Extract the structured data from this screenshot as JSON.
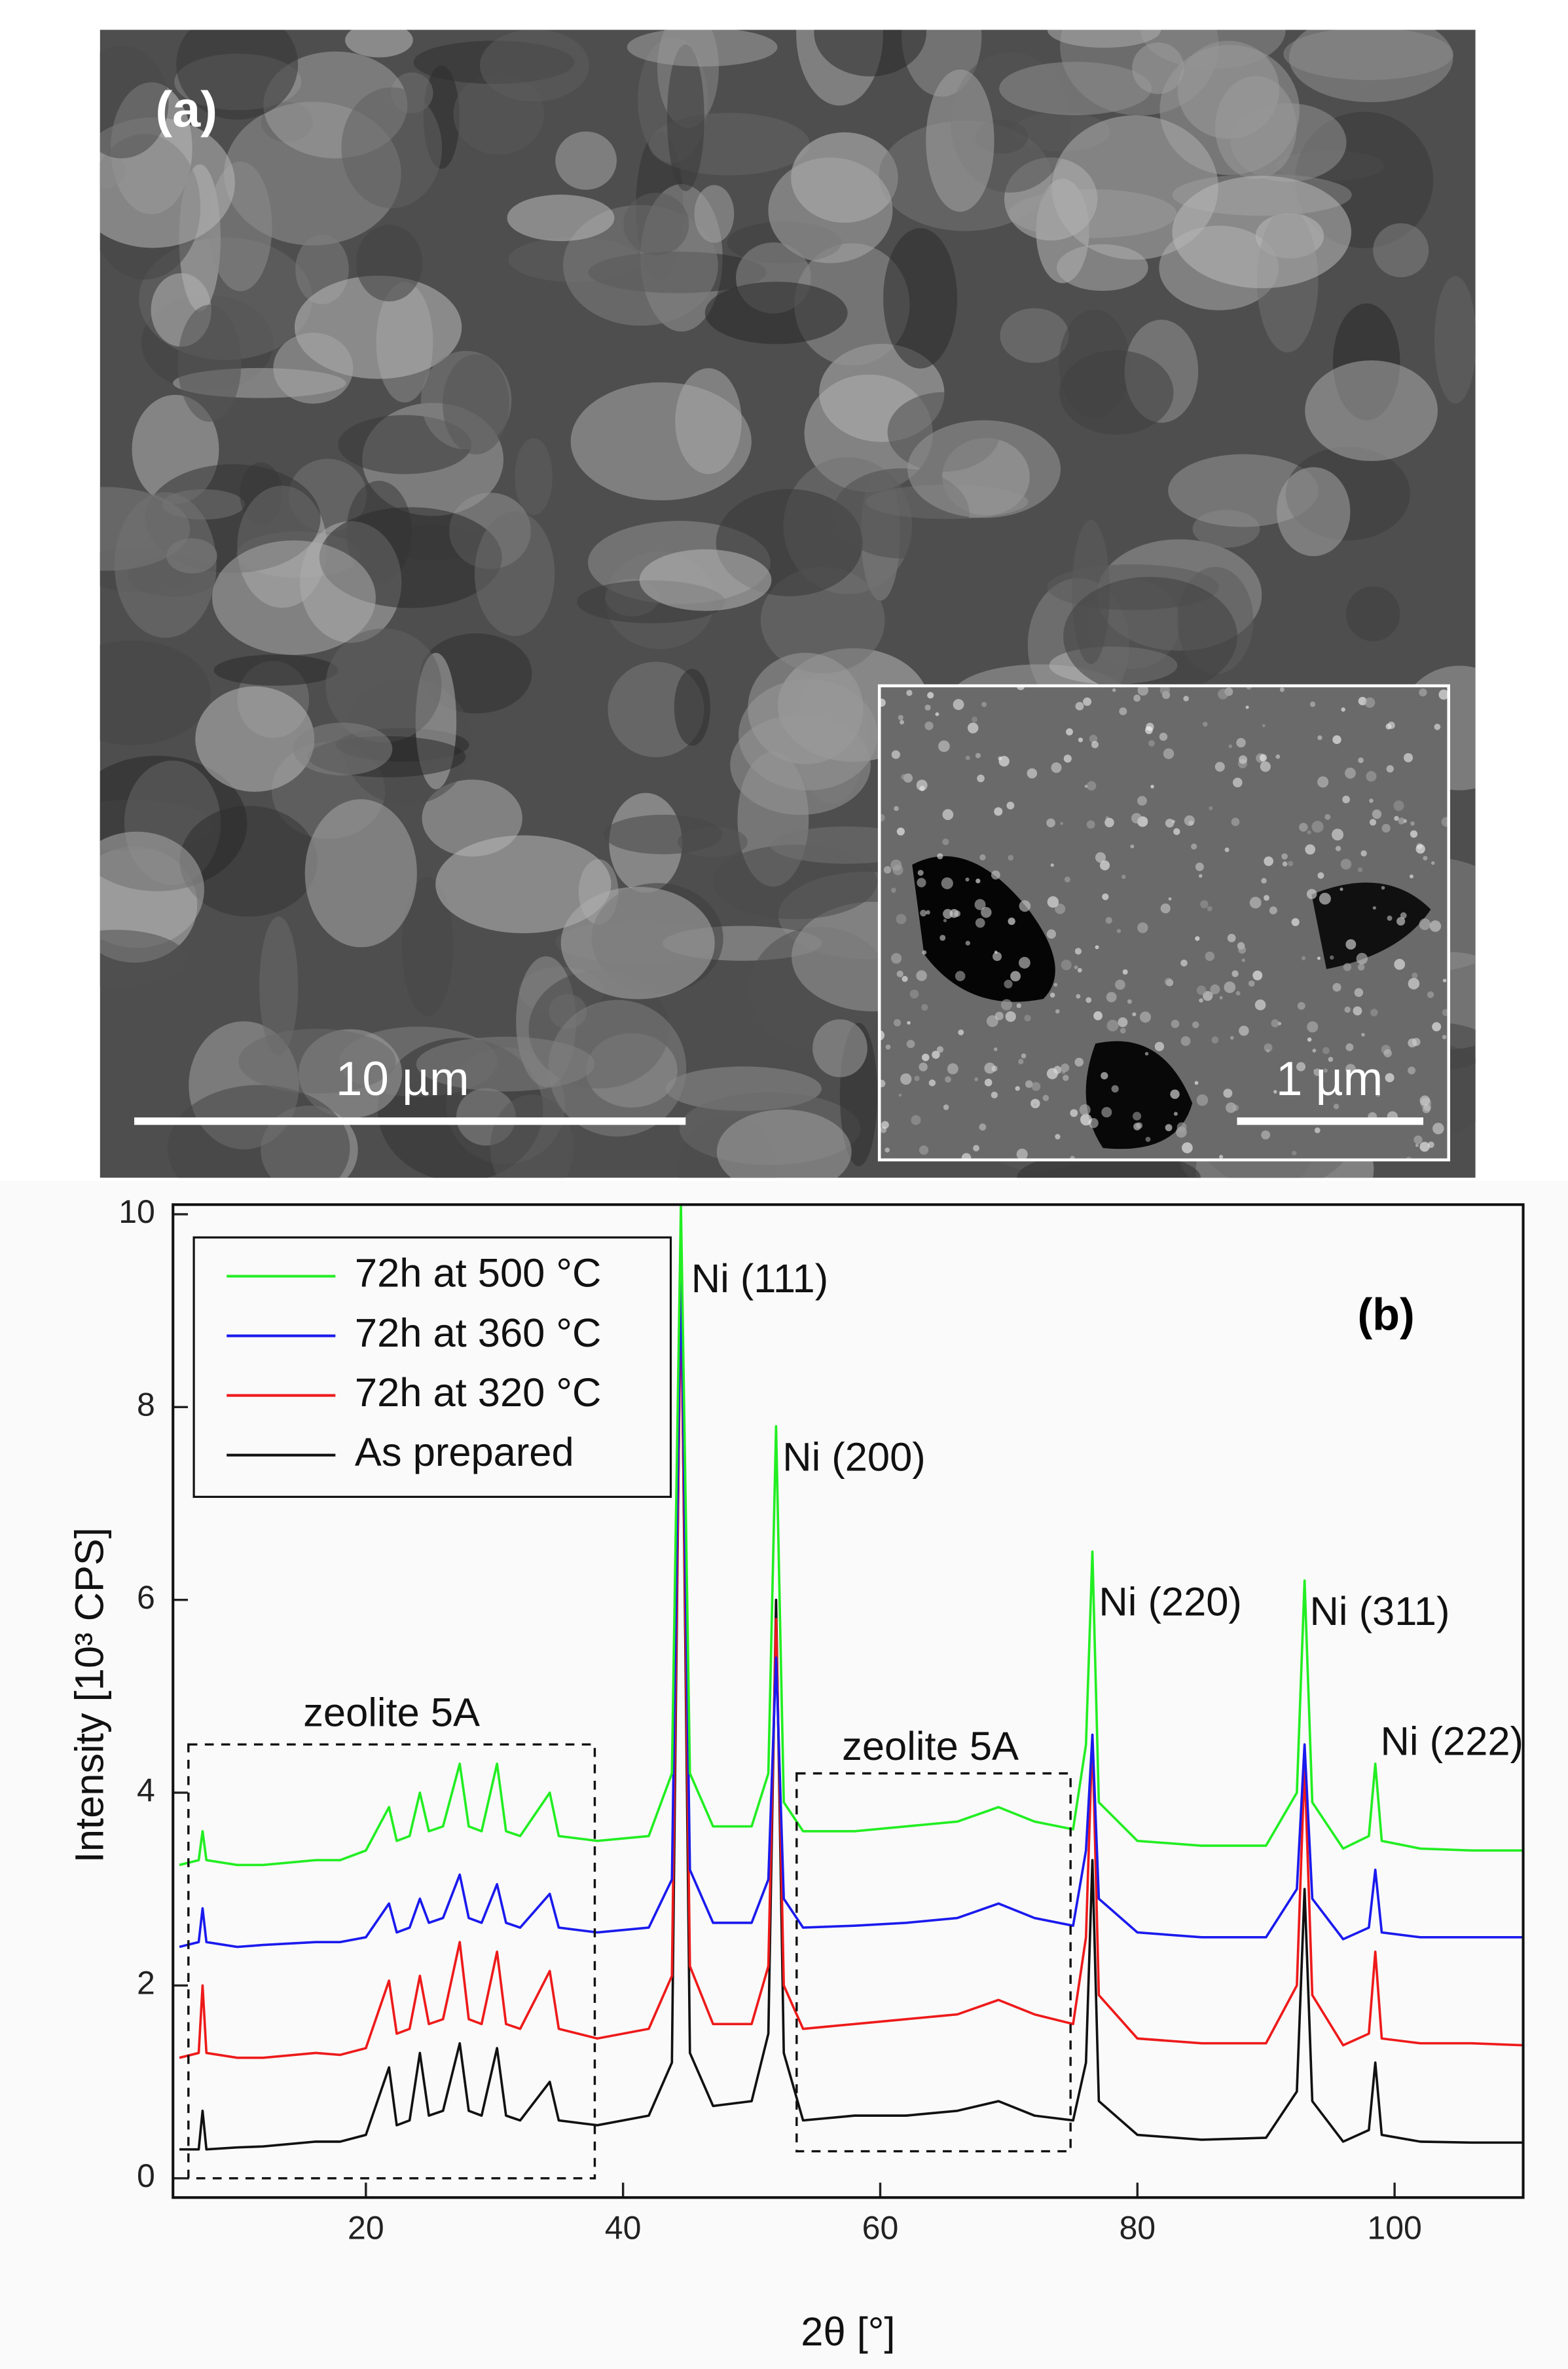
{
  "panel_a": {
    "label": "(a)",
    "scale_bar": "10 µm",
    "inset_scale_bar": "1 µm"
  },
  "chart_data": {
    "type": "line",
    "panel_label": "(b)",
    "x_label": "2θ [°]",
    "y_label": "Intensity [10³ CPS]",
    "xlim": [
      5,
      110
    ],
    "ylim": [
      -0.2,
      10.1
    ],
    "xticks": [
      20,
      40,
      60,
      80,
      100
    ],
    "yticks": [
      0,
      2,
      4,
      6,
      8,
      10
    ],
    "legend": "top-left",
    "annotations": [
      "Ni (111)",
      "Ni (200)",
      "Ni (220)",
      "Ni (311)",
      "Ni (222)",
      "zeolite 5A",
      "zeolite 5A"
    ],
    "x": [
      5.5,
      7,
      7.3,
      7.6,
      10,
      12,
      16.1,
      18,
      20,
      21.8,
      22.4,
      23.4,
      24.2,
      24.9,
      26,
      27.3,
      28,
      29,
      30.2,
      30.9,
      32,
      34.3,
      35,
      38,
      42,
      43.8,
      44.5,
      45.2,
      47,
      50,
      51.3,
      51.9,
      52.5,
      54,
      58,
      62,
      66,
      69.2,
      72,
      75,
      76,
      76.5,
      77,
      80,
      85,
      90,
      92.4,
      93,
      93.6,
      96,
      98,
      98.5,
      99,
      102,
      106,
      110
    ],
    "series": [
      {
        "name": "72h at 500 °C",
        "color": "#22ee22",
        "values": [
          3.25,
          3.3,
          3.6,
          3.3,
          3.25,
          3.25,
          3.3,
          3.3,
          3.4,
          3.85,
          3.5,
          3.55,
          4.0,
          3.6,
          3.65,
          4.3,
          3.65,
          3.6,
          4.3,
          3.6,
          3.55,
          4.0,
          3.55,
          3.5,
          3.55,
          4.2,
          10.1,
          4.2,
          3.65,
          3.65,
          4.2,
          7.8,
          3.9,
          3.6,
          3.6,
          3.65,
          3.7,
          3.85,
          3.7,
          3.62,
          4.5,
          6.5,
          3.9,
          3.5,
          3.45,
          3.45,
          4.0,
          6.2,
          3.9,
          3.42,
          3.55,
          4.3,
          3.5,
          3.42,
          3.4,
          3.4
        ]
      },
      {
        "name": "72h at 360 °C",
        "color": "#1a1aee",
        "values": [
          2.4,
          2.45,
          2.8,
          2.45,
          2.4,
          2.42,
          2.45,
          2.45,
          2.5,
          2.85,
          2.55,
          2.6,
          2.9,
          2.65,
          2.7,
          3.15,
          2.7,
          2.65,
          3.05,
          2.65,
          2.6,
          2.95,
          2.6,
          2.55,
          2.6,
          3.1,
          9.5,
          3.2,
          2.65,
          2.65,
          3.1,
          5.4,
          2.9,
          2.6,
          2.62,
          2.65,
          2.7,
          2.85,
          2.7,
          2.62,
          3.4,
          4.6,
          2.9,
          2.55,
          2.5,
          2.5,
          3.0,
          4.5,
          2.9,
          2.48,
          2.6,
          3.2,
          2.55,
          2.5,
          2.5,
          2.5
        ]
      },
      {
        "name": "72h at 320 °C",
        "color": "#ee1a1a",
        "values": [
          1.25,
          1.3,
          2.0,
          1.3,
          1.25,
          1.25,
          1.3,
          1.28,
          1.35,
          2.05,
          1.5,
          1.55,
          2.1,
          1.6,
          1.65,
          2.45,
          1.65,
          1.6,
          2.35,
          1.6,
          1.55,
          2.15,
          1.55,
          1.45,
          1.55,
          2.1,
          9.3,
          2.2,
          1.6,
          1.6,
          2.2,
          5.8,
          2.0,
          1.55,
          1.6,
          1.65,
          1.7,
          1.85,
          1.7,
          1.6,
          2.5,
          4.6,
          1.9,
          1.45,
          1.4,
          1.4,
          2.0,
          4.3,
          1.9,
          1.38,
          1.5,
          2.35,
          1.45,
          1.4,
          1.4,
          1.38
        ]
      },
      {
        "name": "As prepared",
        "color": "#111111",
        "values": [
          0.3,
          0.3,
          0.7,
          0.3,
          0.32,
          0.33,
          0.38,
          0.38,
          0.45,
          1.15,
          0.55,
          0.6,
          1.3,
          0.65,
          0.7,
          1.4,
          0.7,
          0.65,
          1.35,
          0.65,
          0.6,
          1.0,
          0.6,
          0.55,
          0.65,
          1.2,
          9.6,
          1.3,
          0.75,
          0.8,
          1.5,
          6.0,
          1.3,
          0.6,
          0.65,
          0.65,
          0.7,
          0.8,
          0.65,
          0.6,
          1.2,
          3.3,
          0.8,
          0.45,
          0.4,
          0.42,
          0.9,
          3.0,
          0.8,
          0.38,
          0.5,
          1.2,
          0.45,
          0.38,
          0.37,
          0.37
        ]
      }
    ]
  }
}
